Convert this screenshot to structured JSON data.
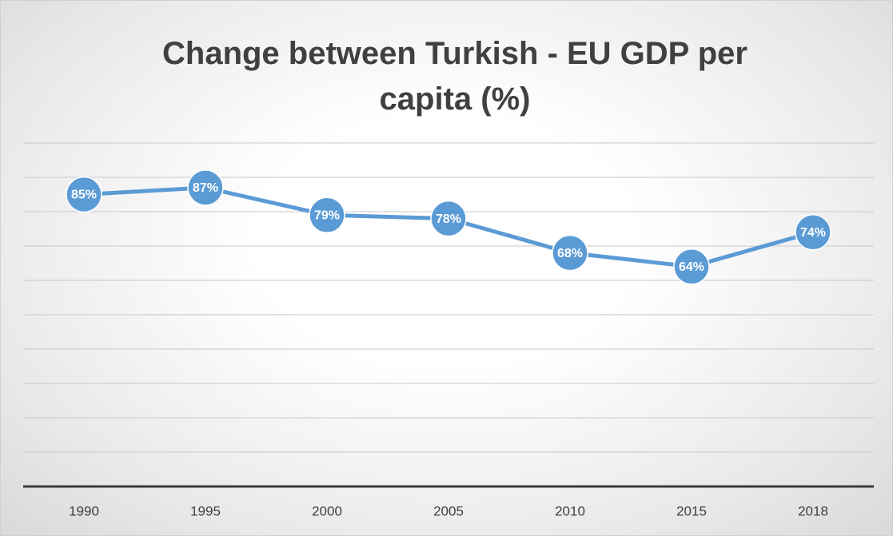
{
  "chart_data": {
    "type": "line",
    "title": "Change between Turkish - EU GDP per capita (%)",
    "categories": [
      "1990",
      "1995",
      "2000",
      "2005",
      "2010",
      "2015",
      "2018"
    ],
    "values": [
      85,
      87,
      79,
      78,
      68,
      64,
      74
    ],
    "value_labels": [
      "85%",
      "87%",
      "79%",
      "78%",
      "68%",
      "64%",
      "74%"
    ],
    "color": "#5b9bd5",
    "ylim": [
      0,
      100
    ],
    "yticks": [
      0,
      10,
      20,
      30,
      40,
      50,
      60,
      70,
      80,
      90,
      100
    ],
    "grid": true
  }
}
